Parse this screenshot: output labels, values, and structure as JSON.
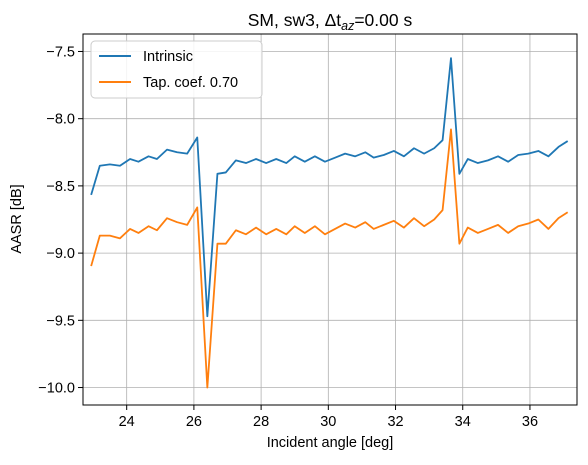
{
  "chart_data": {
    "type": "line",
    "title_main": "SM, sw3, Δt",
    "title_sub": "az",
    "title_tail": "=0.00 s",
    "xlabel": "Incident angle [deg]",
    "ylabel": "AASR [dB]",
    "xlim": [
      22.7,
      37.4
    ],
    "ylim": [
      -10.13,
      -7.37
    ],
    "x_ticks": [
      24,
      26,
      28,
      30,
      32,
      34,
      36
    ],
    "x_tick_labels": [
      "24",
      "26",
      "28",
      "30",
      "32",
      "34",
      "36"
    ],
    "y_ticks": [
      -7.5,
      -8.0,
      -8.5,
      -9.0,
      -9.5,
      -10.0
    ],
    "y_tick_labels": [
      "−7.5",
      "−8.0",
      "−8.5",
      "−9.0",
      "−9.5",
      "−10.0"
    ],
    "grid": true,
    "legend_position": "top-left",
    "x": [
      22.95,
      23.2,
      23.5,
      23.8,
      24.1,
      24.35,
      24.65,
      24.9,
      25.2,
      25.5,
      25.8,
      26.1,
      26.4,
      26.7,
      26.95,
      27.25,
      27.55,
      27.85,
      28.15,
      28.45,
      28.75,
      29.0,
      29.3,
      29.6,
      29.9,
      30.2,
      30.5,
      30.8,
      31.1,
      31.35,
      31.65,
      31.95,
      32.25,
      32.55,
      32.85,
      33.15,
      33.4,
      33.65,
      33.9,
      34.15,
      34.45,
      34.75,
      35.05,
      35.35,
      35.65,
      35.95,
      36.25,
      36.55,
      36.85,
      37.1
    ],
    "series": [
      {
        "name": "Intrinsic",
        "color": "#1f77b4",
        "values": [
          -8.56,
          -8.35,
          -8.34,
          -8.35,
          -8.3,
          -8.32,
          -8.28,
          -8.3,
          -8.23,
          -8.25,
          -8.26,
          -8.14,
          -9.47,
          -8.41,
          -8.4,
          -8.31,
          -8.33,
          -8.3,
          -8.33,
          -8.3,
          -8.33,
          -8.28,
          -8.32,
          -8.28,
          -8.32,
          -8.29,
          -8.26,
          -8.28,
          -8.25,
          -8.29,
          -8.27,
          -8.24,
          -8.28,
          -8.22,
          -8.26,
          -8.22,
          -8.16,
          -7.55,
          -8.41,
          -8.3,
          -8.33,
          -8.31,
          -8.28,
          -8.32,
          -8.27,
          -8.26,
          -8.24,
          -8.28,
          -8.21,
          -8.17
        ]
      },
      {
        "name": "Tap. coef. 0.70",
        "color": "#ff7f0e",
        "values": [
          -9.09,
          -8.87,
          -8.87,
          -8.89,
          -8.82,
          -8.85,
          -8.8,
          -8.83,
          -8.74,
          -8.77,
          -8.79,
          -8.66,
          -10.0,
          -8.93,
          -8.93,
          -8.83,
          -8.86,
          -8.81,
          -8.86,
          -8.82,
          -8.86,
          -8.8,
          -8.85,
          -8.8,
          -8.86,
          -8.82,
          -8.78,
          -8.81,
          -8.77,
          -8.82,
          -8.79,
          -8.76,
          -8.81,
          -8.74,
          -8.8,
          -8.75,
          -8.68,
          -8.08,
          -8.93,
          -8.81,
          -8.85,
          -8.82,
          -8.79,
          -8.85,
          -8.8,
          -8.78,
          -8.75,
          -8.82,
          -8.74,
          -8.7
        ]
      }
    ]
  }
}
